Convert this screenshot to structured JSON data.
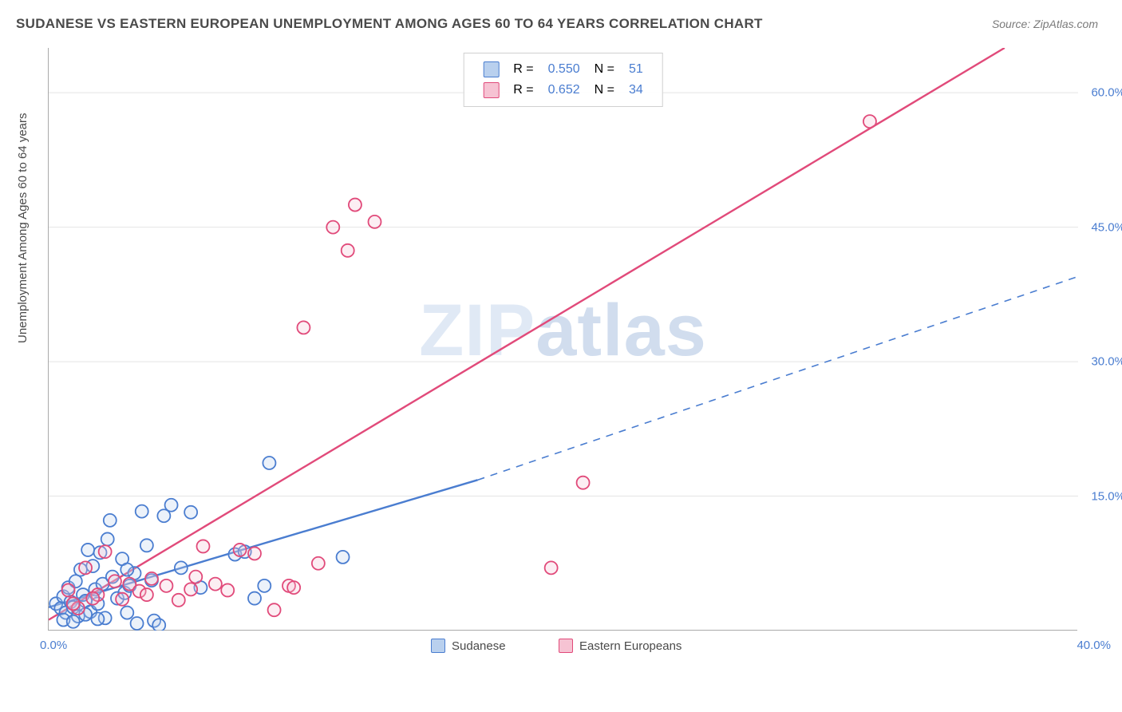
{
  "title": "SUDANESE VS EASTERN EUROPEAN UNEMPLOYMENT AMONG AGES 60 TO 64 YEARS CORRELATION CHART",
  "source": "Source: ZipAtlas.com",
  "ylabel": "Unemployment Among Ages 60 to 64 years",
  "watermark_a": "ZIP",
  "watermark_b": "atlas",
  "chart": {
    "type": "scatter",
    "xlim": [
      0,
      42
    ],
    "ylim": [
      0,
      65
    ],
    "x_tick_positions": [
      0,
      5.25,
      10.5,
      15.75,
      21,
      26.25,
      31.5,
      36.75,
      42
    ],
    "x_tick_labels": {
      "0": "0.0%",
      "42": "40.0%"
    },
    "y_tick_positions": [
      15,
      30,
      45,
      60
    ],
    "y_tick_labels": {
      "15": "15.0%",
      "30": "30.0%",
      "45": "45.0%",
      "60": "60.0%"
    },
    "background_color": "#ffffff",
    "grid_color": "#e4e4e4",
    "axis_color": "#a9a9a9",
    "tick_label_color": "#4a7dd0",
    "marker_radius": 8,
    "marker_stroke_width": 1.8,
    "marker_fill_opacity": 0.28,
    "trend_line_width": 2.4
  },
  "series": [
    {
      "name": "Sudanese",
      "color": "#4a7dd0",
      "fill": "#b9d0ee",
      "r_label": "R =",
      "r": "0.550",
      "n_label": "N =",
      "n": "51",
      "trend": {
        "x1": 0,
        "y1": 2.6,
        "x2": 17.5,
        "y2": 16.8,
        "xdash2": 42,
        "ydash2": 39.5
      },
      "points": [
        [
          0.3,
          3.0
        ],
        [
          0.5,
          2.5
        ],
        [
          0.6,
          3.8
        ],
        [
          0.7,
          2.0
        ],
        [
          0.8,
          4.8
        ],
        [
          0.9,
          3.2
        ],
        [
          1.0,
          2.6
        ],
        [
          1.1,
          5.5
        ],
        [
          1.2,
          1.6
        ],
        [
          1.3,
          6.8
        ],
        [
          1.4,
          4.0
        ],
        [
          1.5,
          3.3
        ],
        [
          1.6,
          9.0
        ],
        [
          1.7,
          2.1
        ],
        [
          1.8,
          7.2
        ],
        [
          1.9,
          4.6
        ],
        [
          2.0,
          3.0
        ],
        [
          2.1,
          8.7
        ],
        [
          2.2,
          5.2
        ],
        [
          2.3,
          1.4
        ],
        [
          2.4,
          10.2
        ],
        [
          2.5,
          12.3
        ],
        [
          2.6,
          6.0
        ],
        [
          2.8,
          3.6
        ],
        [
          3.0,
          8.0
        ],
        [
          3.1,
          4.2
        ],
        [
          3.2,
          2.0
        ],
        [
          3.3,
          5.0
        ],
        [
          3.5,
          6.4
        ],
        [
          3.6,
          0.8
        ],
        [
          3.8,
          13.3
        ],
        [
          4.0,
          9.5
        ],
        [
          4.2,
          5.6
        ],
        [
          4.3,
          1.1
        ],
        [
          4.5,
          0.6
        ],
        [
          4.7,
          12.8
        ],
        [
          5.0,
          14.0
        ],
        [
          5.4,
          7.0
        ],
        [
          5.8,
          13.2
        ],
        [
          6.2,
          4.8
        ],
        [
          7.6,
          8.5
        ],
        [
          8.0,
          8.8
        ],
        [
          8.4,
          3.6
        ],
        [
          8.8,
          5.0
        ],
        [
          9.0,
          18.7
        ],
        [
          12.0,
          8.2
        ],
        [
          0.6,
          1.2
        ],
        [
          1.0,
          1.0
        ],
        [
          2.0,
          1.3
        ],
        [
          1.5,
          1.8
        ],
        [
          3.2,
          6.8
        ]
      ]
    },
    {
      "name": "Eastern Europeans",
      "color": "#e14a7a",
      "fill": "#f6c3d3",
      "r_label": "R =",
      "r": "0.652",
      "n_label": "N =",
      "n": "34",
      "trend": {
        "x1": 0,
        "y1": 1.2,
        "x2": 39,
        "y2": 65
      },
      "points": [
        [
          0.8,
          4.5
        ],
        [
          1.2,
          2.5
        ],
        [
          1.5,
          7.0
        ],
        [
          2.0,
          4.0
        ],
        [
          2.3,
          8.8
        ],
        [
          2.7,
          5.5
        ],
        [
          3.0,
          3.5
        ],
        [
          3.3,
          5.2
        ],
        [
          3.7,
          4.4
        ],
        [
          4.2,
          5.8
        ],
        [
          4.8,
          5.0
        ],
        [
          5.3,
          3.4
        ],
        [
          5.8,
          4.6
        ],
        [
          6.3,
          9.4
        ],
        [
          6.8,
          5.2
        ],
        [
          7.3,
          4.5
        ],
        [
          7.8,
          9.0
        ],
        [
          8.4,
          8.6
        ],
        [
          9.2,
          2.3
        ],
        [
          9.8,
          5.0
        ],
        [
          10.4,
          33.8
        ],
        [
          11.0,
          7.5
        ],
        [
          11.6,
          45.0
        ],
        [
          12.2,
          42.4
        ],
        [
          12.5,
          47.5
        ],
        [
          13.3,
          45.6
        ],
        [
          20.5,
          7.0
        ],
        [
          21.8,
          16.5
        ],
        [
          33.5,
          56.8
        ],
        [
          1.0,
          3.0
        ],
        [
          1.8,
          3.6
        ],
        [
          4.0,
          4.0
        ],
        [
          6.0,
          6.0
        ],
        [
          10.0,
          4.8
        ]
      ]
    }
  ],
  "legend": [
    {
      "label": "Sudanese",
      "color": "#4a7dd0",
      "fill": "#b9d0ee"
    },
    {
      "label": "Eastern Europeans",
      "color": "#e14a7a",
      "fill": "#f6c3d3"
    }
  ]
}
